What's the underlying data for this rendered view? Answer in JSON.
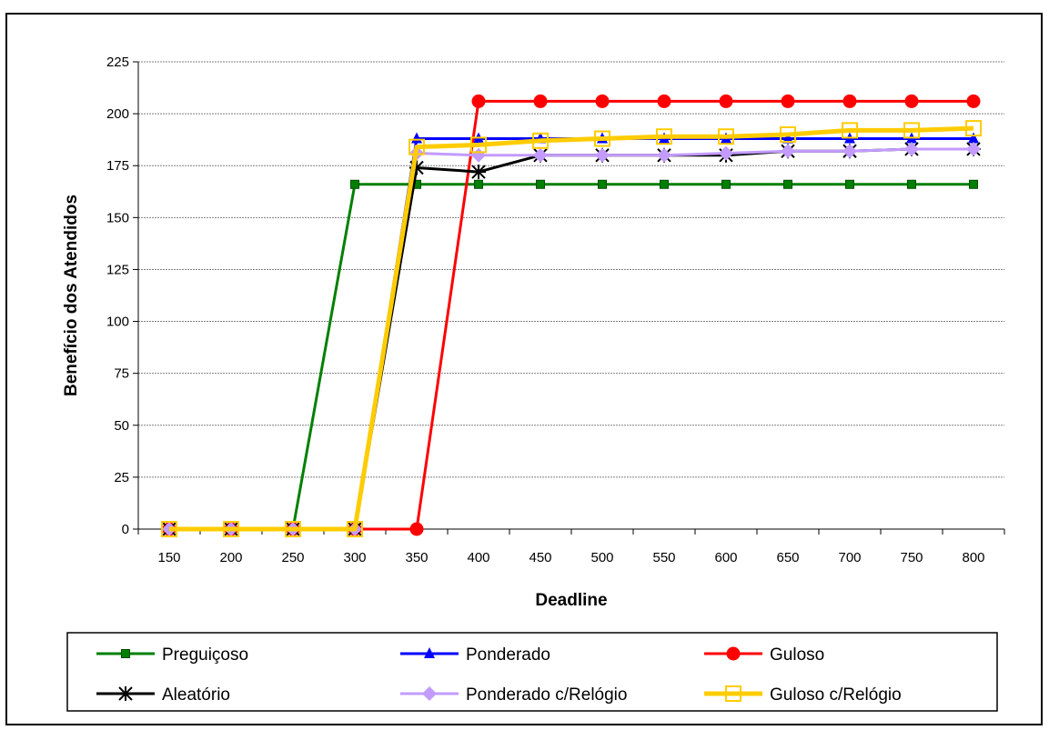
{
  "chart_data": {
    "type": "line",
    "title": "",
    "xlabel": "Deadline",
    "ylabel": "Benefício dos Atendidos",
    "ylim": [
      0,
      225
    ],
    "yticks": [
      0,
      25,
      50,
      75,
      100,
      125,
      150,
      175,
      200,
      225
    ],
    "grid": true,
    "legend_position": "bottom",
    "categories": [
      "150",
      "200",
      "250",
      "300",
      "350",
      "400",
      "450",
      "500",
      "550",
      "600",
      "650",
      "700",
      "750",
      "800"
    ],
    "series": [
      {
        "name": "Preguiçoso",
        "color": "#008000",
        "marker": "square-filled",
        "values": [
          0,
          0,
          0,
          166,
          166,
          166,
          166,
          166,
          166,
          166,
          166,
          166,
          166,
          166
        ]
      },
      {
        "name": "Ponderado",
        "color": "#0000ff",
        "marker": "triangle-filled",
        "values": [
          0,
          0,
          0,
          0,
          188,
          188,
          188,
          188,
          188,
          188,
          188,
          188,
          188,
          188
        ]
      },
      {
        "name": "Guloso",
        "color": "#ff0000",
        "marker": "circle-filled",
        "values": [
          0,
          0,
          0,
          0,
          0,
          206,
          206,
          206,
          206,
          206,
          206,
          206,
          206,
          206
        ]
      },
      {
        "name": "Aleatório",
        "color": "#000000",
        "marker": "asterisk",
        "values": [
          0,
          0,
          0,
          0,
          174,
          172,
          180,
          180,
          180,
          180,
          182,
          182,
          183,
          183
        ]
      },
      {
        "name": "Ponderado c/Relógio",
        "color": "#c39bff",
        "marker": "diamond-filled",
        "values": [
          0,
          0,
          0,
          0,
          181,
          180,
          180,
          180,
          180,
          181,
          182,
          182,
          183,
          183
        ]
      },
      {
        "name": "Guloso c/Relógio",
        "color": "#ffcc00",
        "marker": "square-open",
        "values": [
          0,
          0,
          0,
          0,
          184,
          185,
          187,
          188,
          189,
          189,
          190,
          192,
          192,
          193
        ]
      }
    ]
  }
}
